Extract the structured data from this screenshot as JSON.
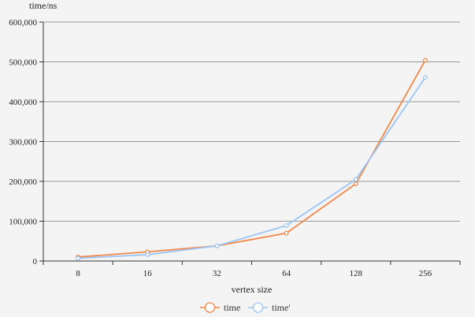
{
  "chart_data": {
    "type": "line",
    "ylabel": "time/ns",
    "xlabel": "vertex size",
    "categories": [
      "8",
      "16",
      "32",
      "64",
      "128",
      "256"
    ],
    "ylim": [
      0,
      600000
    ],
    "yticks": [
      0,
      100000,
      200000,
      300000,
      400000,
      500000,
      600000
    ],
    "ytick_labels": [
      "0",
      "100,000",
      "200,000",
      "300,000",
      "400,000",
      "500,000",
      "600,000"
    ],
    "grid": true,
    "legend_position": "bottom",
    "series": [
      {
        "name": "time",
        "color": "#f0894a",
        "values": [
          10000,
          23000,
          38000,
          70000,
          194000,
          504000
        ]
      },
      {
        "name": "time'",
        "color": "#9cc5f7",
        "values": [
          7000,
          16000,
          38000,
          89000,
          205000,
          461000
        ]
      }
    ]
  }
}
